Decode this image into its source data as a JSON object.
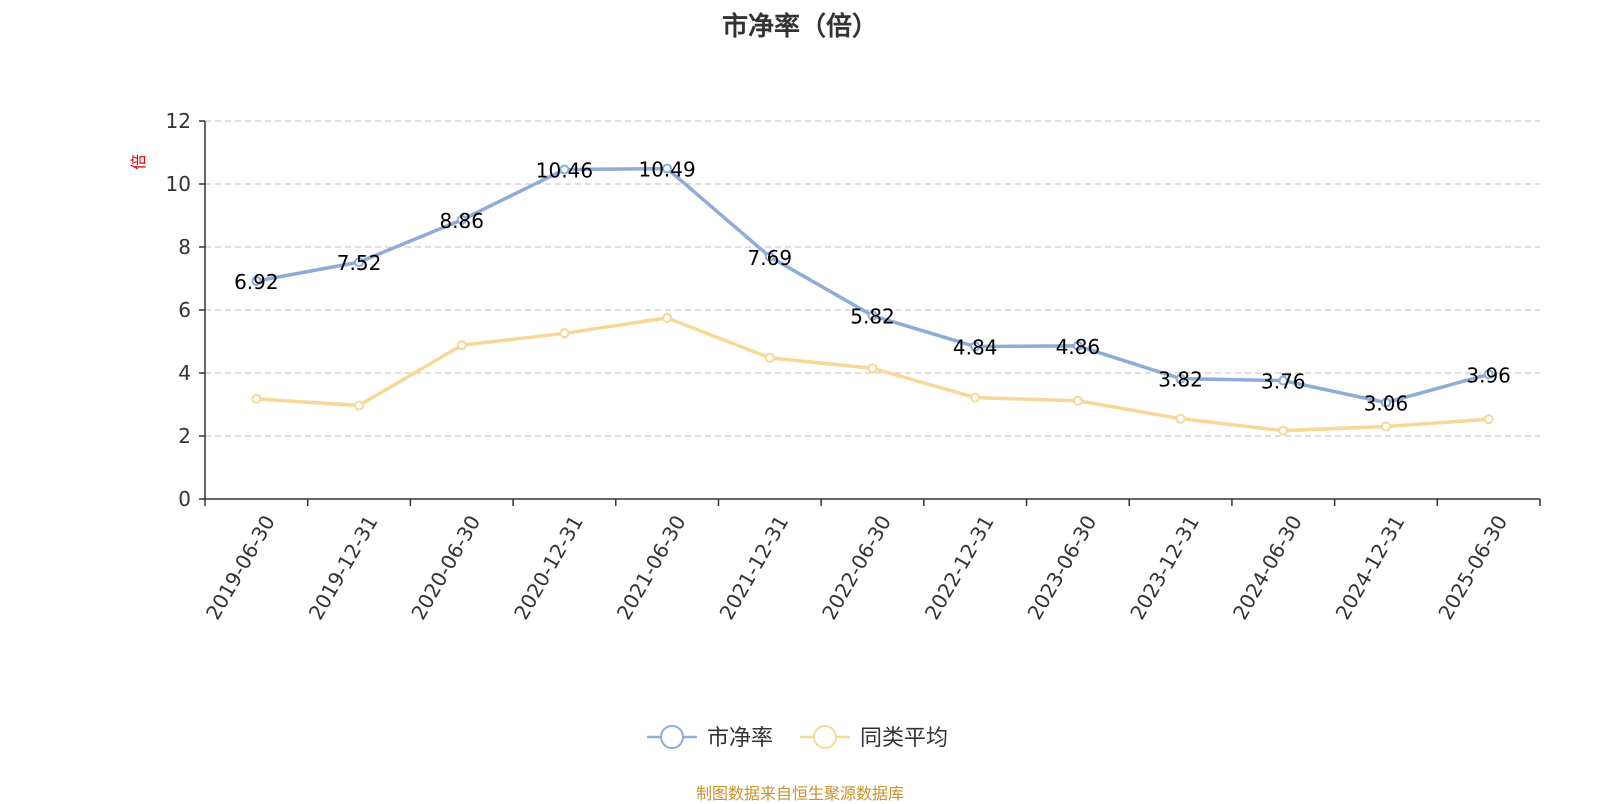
{
  "source_note": "制图数据来自恒生聚源数据库",
  "source_color": "#c8922e",
  "chart_data": {
    "type": "line",
    "title": "市净率（倍）",
    "ylabel": "倍",
    "ylabel_color": "#e00000",
    "ylim": [
      0,
      12
    ],
    "yticks": [
      0,
      2,
      4,
      6,
      8,
      10,
      12
    ],
    "grid": "horizontal dashed",
    "legend_position": "bottom-center",
    "categories": [
      "2019-06-30",
      "2019-12-31",
      "2020-06-30",
      "2020-12-31",
      "2021-06-30",
      "2021-12-31",
      "2022-06-30",
      "2022-12-31",
      "2023-06-30",
      "2023-12-31",
      "2024-06-30",
      "2024-12-31",
      "2025-06-30"
    ],
    "series": [
      {
        "name": "市净率",
        "color": "#8eacd8",
        "labeled": true,
        "values": [
          6.92,
          7.52,
          8.86,
          10.46,
          10.49,
          7.69,
          5.82,
          4.84,
          4.86,
          3.82,
          3.76,
          3.06,
          3.96
        ],
        "labels": [
          "6.92",
          "7.52",
          "8.86",
          "10.46",
          "10.49",
          "7.69",
          "5.82",
          "4.84",
          "4.86",
          "3.82",
          "3.76",
          "3.06",
          "3.96"
        ]
      },
      {
        "name": "同类平均",
        "color": "#f8d898",
        "labeled": false,
        "values": [
          3.18,
          2.97,
          4.88,
          5.26,
          5.75,
          4.48,
          4.15,
          3.22,
          3.12,
          2.55,
          2.17,
          2.3,
          2.53
        ]
      }
    ]
  }
}
